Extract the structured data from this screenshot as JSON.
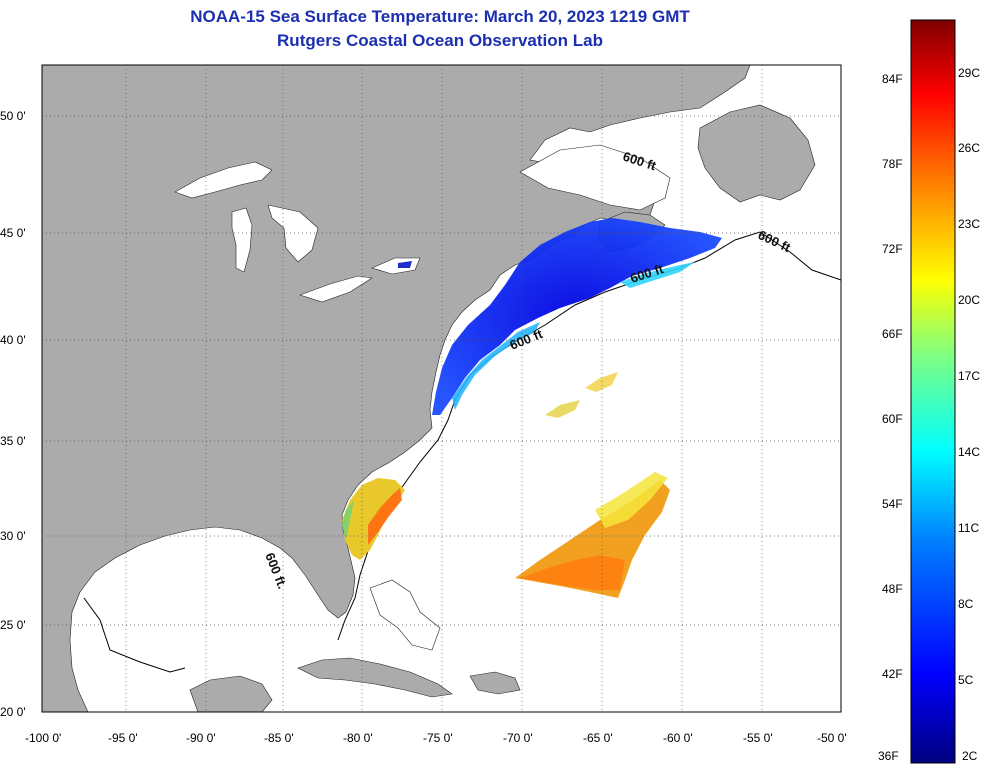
{
  "title": {
    "line1": "NOAA-15 Sea Surface Temperature:  March 20, 2023 1219 GMT",
    "line2": "Rutgers Coastal Ocean Observation Lab"
  },
  "lat_labels": [
    "50 0'",
    "45 0'",
    "40 0'",
    "35 0'",
    "30 0'",
    "25 0'",
    "20 0'"
  ],
  "lon_labels": [
    "-100 0'",
    "-95 0'",
    "-90 0'",
    "-85 0'",
    "-80 0'",
    "-75 0'",
    "-70 0'",
    "-65 0'",
    "-60 0'",
    "-55 0'",
    "-50 0'"
  ],
  "isobath_label": "600 ft",
  "isobath_label_alt": "600 ft.",
  "colorbar": {
    "f_labels": [
      "84F",
      "78F",
      "72F",
      "66F",
      "60F",
      "54F",
      "48F",
      "42F",
      "36F"
    ],
    "c_labels": [
      "29C",
      "26C",
      "23C",
      "20C",
      "17C",
      "14C",
      "11C",
      "8C",
      "5C",
      "2C"
    ],
    "colors": [
      "#00007f",
      "#0000ff",
      "#0080ff",
      "#00ffff",
      "#80ff80",
      "#ffff00",
      "#ff8000",
      "#ff0000",
      "#7f0000"
    ]
  },
  "colors": {
    "land": "#ababab",
    "ocean": "#ffffff",
    "title": "#1c2fb0"
  }
}
